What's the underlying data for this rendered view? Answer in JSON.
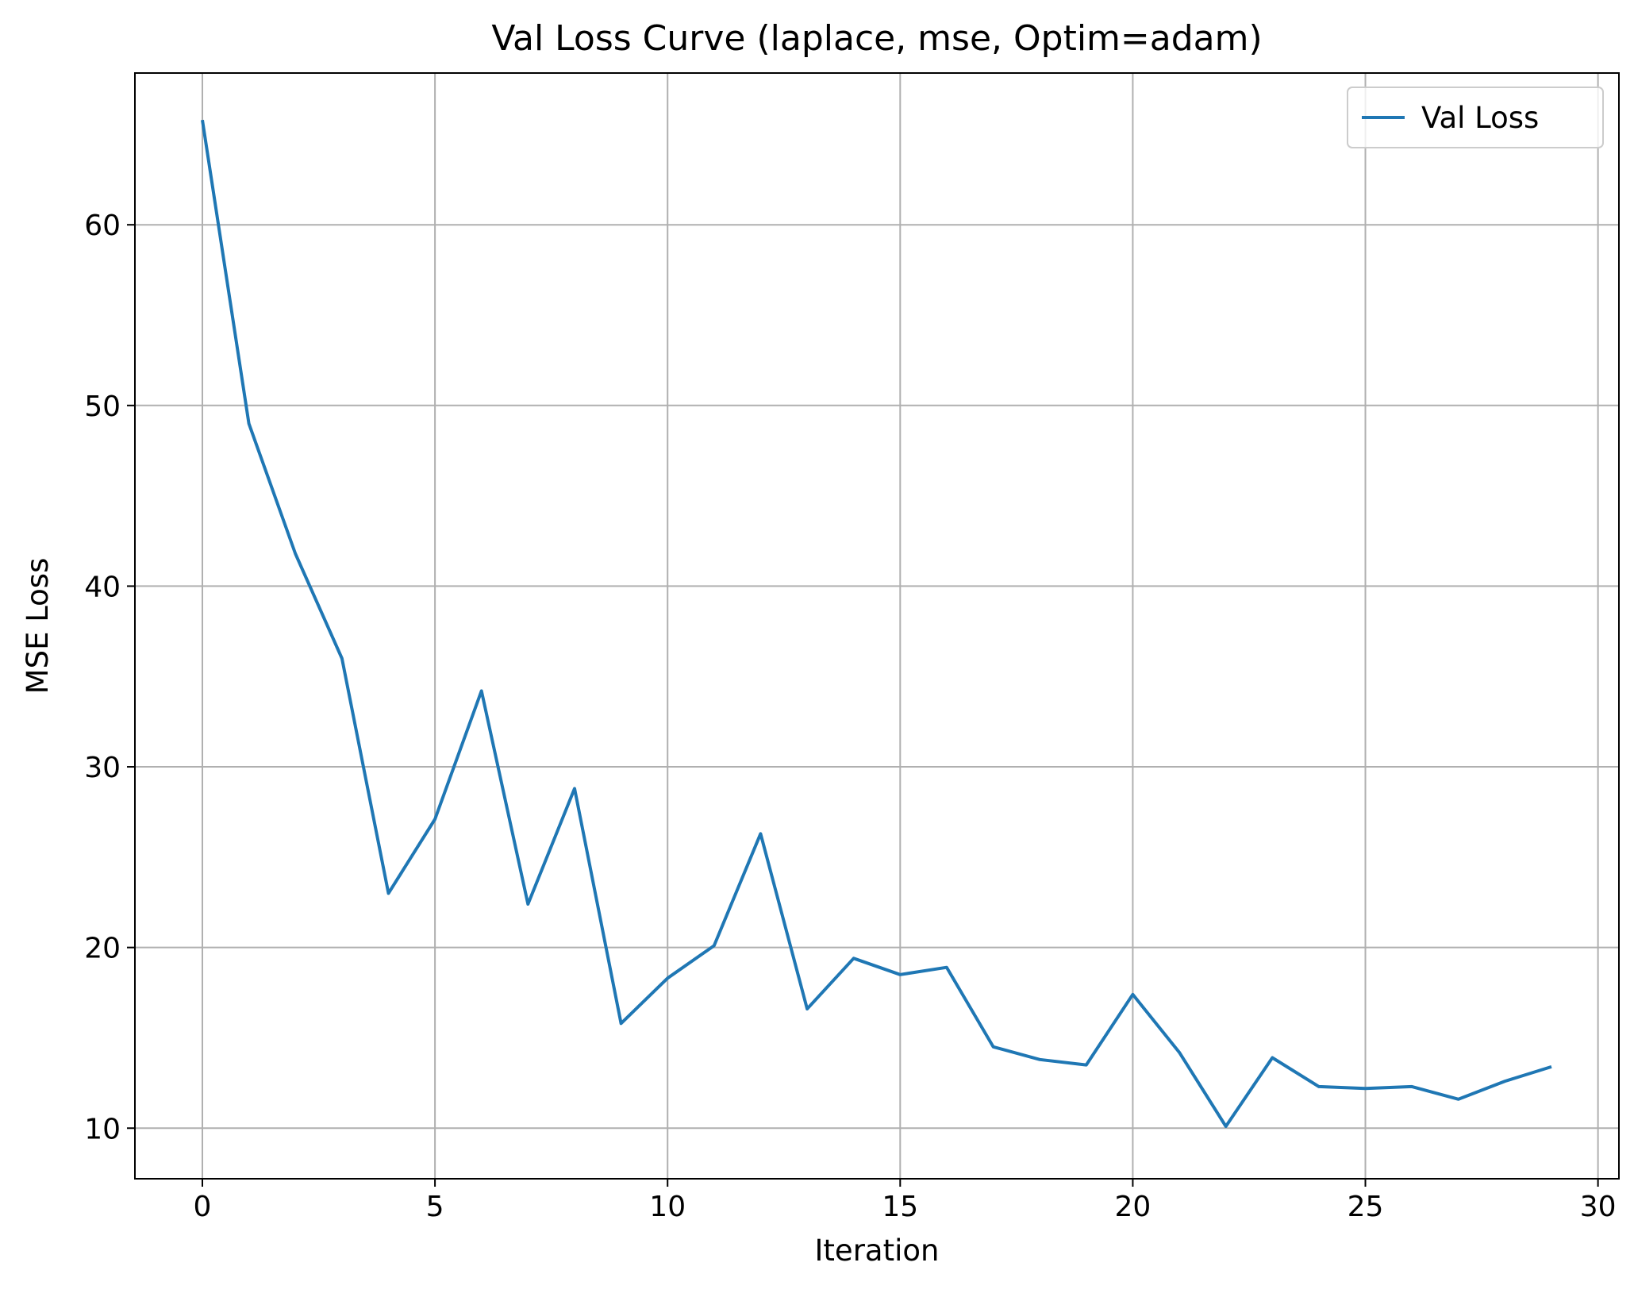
{
  "chart_data": {
    "type": "line",
    "title": "Val Loss Curve (laplace, mse, Optim=adam)",
    "xlabel": "Iteration",
    "ylabel": "MSE Loss",
    "xlim": [
      -1.45,
      30.45
    ],
    "ylim": [
      7.2,
      68.4
    ],
    "xticks": [
      0,
      5,
      10,
      15,
      20,
      25,
      30
    ],
    "yticks": [
      10,
      20,
      30,
      40,
      50,
      60
    ],
    "grid": true,
    "legend_position": "top-right",
    "series": [
      {
        "name": "Val Loss",
        "color": "#1f77b4",
        "x": [
          0,
          1,
          2,
          3,
          4,
          5,
          6,
          7,
          8,
          9,
          10,
          11,
          12,
          13,
          14,
          15,
          16,
          17,
          18,
          19,
          20,
          21,
          22,
          23,
          24,
          25,
          26,
          27,
          28,
          29
        ],
        "y": [
          65.8,
          49.0,
          41.8,
          36.0,
          23.0,
          27.1,
          34.2,
          22.4,
          28.8,
          15.8,
          18.3,
          20.1,
          26.3,
          16.6,
          19.4,
          18.5,
          18.9,
          14.5,
          13.8,
          13.5,
          17.4,
          14.2,
          10.1,
          13.9,
          12.3,
          12.2,
          12.3,
          11.6,
          12.6,
          13.4
        ]
      }
    ]
  }
}
